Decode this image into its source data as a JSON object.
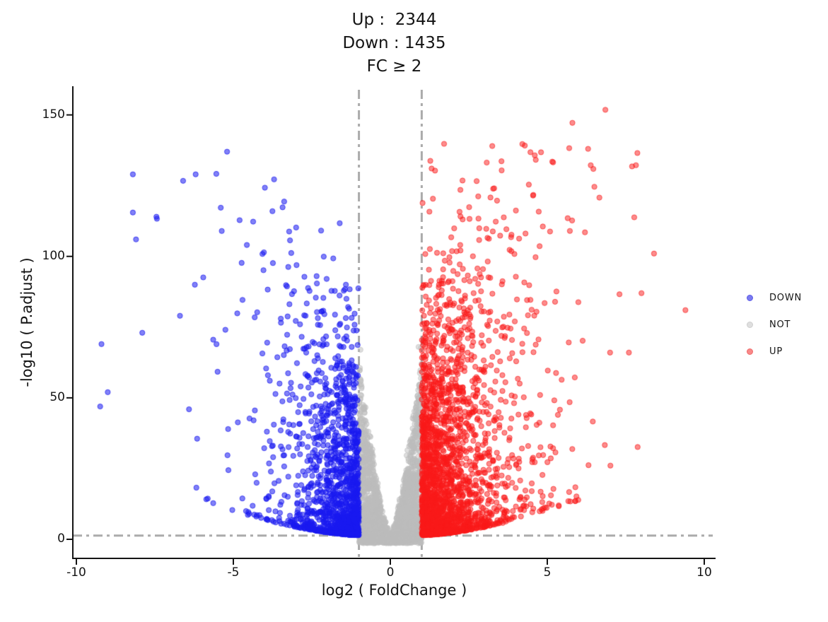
{
  "chart_data": {
    "type": "scatter",
    "variant": "volcano-plot",
    "background": "#ffffff",
    "title_lines": [
      "Up :  2344",
      "Down : 1435",
      "FC ≥ 2"
    ],
    "xlabel": "log2 ( FoldChange )",
    "ylabel": "-log10 ( P.adjust )",
    "x_ticks": [
      "-10",
      "-5",
      "0",
      "5",
      "10"
    ],
    "x_tick_values": [
      -10,
      -5,
      0,
      5,
      10
    ],
    "y_ticks": [
      "0",
      "50",
      "100",
      "150"
    ],
    "y_tick_values": [
      0,
      50,
      100,
      150
    ],
    "xlim": [
      -10.6,
      10.6
    ],
    "ylim": [
      -4,
      160
    ],
    "grid": false,
    "legend_position": "right",
    "counts": {
      "up": 2344,
      "down": 1435
    },
    "thresholds": {
      "abs_log2fc": 1,
      "neg_log10_padjust": 1.3
    },
    "threshold_line_style": {
      "color": "#ababab",
      "dash": "dash-dot",
      "width": 3
    },
    "axis_color": "#141414",
    "series": [
      {
        "name": "DOWN",
        "color": "#1919f0",
        "fill_alpha": 0.55,
        "n": 1435
      },
      {
        "name": "NOT",
        "color": "#bdbdbd",
        "fill_alpha": 0.48
      },
      {
        "name": "UP",
        "color": "#fa1919",
        "fill_alpha": 0.5,
        "n": 2344
      }
    ],
    "legend": [
      {
        "label": "DOWN",
        "swatch": "#7b7bef",
        "ring": "#5c5ce8"
      },
      {
        "label": "NOT",
        "swatch": "#dfdfdf",
        "ring": "#cfcfcf"
      },
      {
        "label": "UP",
        "swatch": "#f98888",
        "ring": "#ef6b6b"
      }
    ],
    "notable_points": {
      "down": [
        [
          -9.2,
          69
        ],
        [
          -9.0,
          52
        ],
        [
          -8.2,
          129
        ],
        [
          -8.2,
          115.5
        ],
        [
          -8.1,
          106
        ],
        [
          -7.9,
          73
        ],
        [
          -7.45,
          114
        ],
        [
          -6.7,
          79
        ],
        [
          -6.6,
          126.7
        ],
        [
          -6.2,
          129
        ],
        [
          -5.4,
          117.2
        ],
        [
          -5.2,
          137
        ],
        [
          -3.0,
          110.2
        ],
        [
          -4.8,
          112.8
        ]
      ],
      "up": [
        [
          6.85,
          151.8
        ],
        [
          5.8,
          147.2
        ],
        [
          6.3,
          138
        ],
        [
          4.8,
          136.8
        ],
        [
          7.7,
          131.8
        ],
        [
          2.3,
          126.8
        ],
        [
          6.5,
          124.6
        ],
        [
          2.8,
          121.2
        ],
        [
          3.4,
          119.7
        ],
        [
          4.0,
          116.2
        ],
        [
          5.65,
          113.5
        ],
        [
          7.77,
          113.8
        ],
        [
          6.2,
          108.5
        ],
        [
          8.4,
          101
        ],
        [
          9.4,
          81
        ],
        [
          8.0,
          87
        ],
        [
          7.6,
          66
        ],
        [
          7.0,
          66
        ]
      ],
      "not": [
        [
          -0.95,
          67
        ],
        [
          0.9,
          68
        ]
      ]
    },
    "generator": {
      "seed": 1337,
      "marker_radius": 3.6,
      "down": {
        "n": 1421,
        "x_scale": 0.95,
        "y_pow": 2.4,
        "y_top_base": 42,
        "y_top_slope": 20,
        "y_cap": 130,
        "high_frac": 0.012
      },
      "up": {
        "n": 2326,
        "x_scale": 1.02,
        "y_pow": 2.05,
        "y_top_base": 48,
        "y_top_slope": 20,
        "y_cap": 140,
        "high_frac": 0.015
      },
      "not": {
        "n": 2600,
        "x_pow": 0.78,
        "env_base": 2.5,
        "env_k": 62,
        "env_pow": 1.5,
        "y_pow": 2.0,
        "straggler_frac": 0.02
      }
    }
  }
}
